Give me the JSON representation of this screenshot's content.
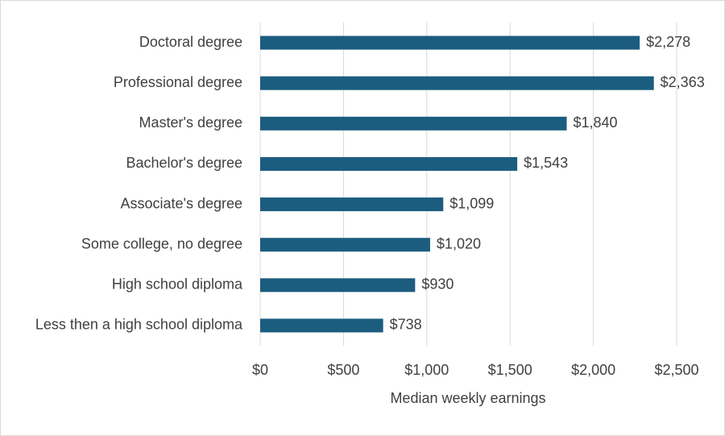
{
  "chart_data": {
    "type": "barh",
    "x_label": "Median weekly earnings",
    "categories": [
      "Doctoral degree",
      "Professional degree",
      "Master's degree",
      "Bachelor's degree",
      "Associate's degree",
      "Some college, no degree",
      "High school diploma",
      "Less then a high school diploma"
    ],
    "values": [
      2278,
      2363,
      1840,
      1543,
      1099,
      1020,
      930,
      738
    ],
    "value_labels": [
      "$2,278",
      "$2,363",
      "$1,840",
      "$1,543",
      "$1,099",
      "$1,020",
      "$930",
      "$738"
    ],
    "color": "#1c5d7f",
    "xlim": [
      0,
      2500
    ],
    "xticks": [
      {
        "value": 0,
        "label": "$0"
      },
      {
        "value": 500,
        "label": "$500"
      },
      {
        "value": 1000,
        "label": "$1,000"
      },
      {
        "value": 1500,
        "label": "$1,500"
      },
      {
        "value": 2000,
        "label": "$2,000"
      },
      {
        "value": 2500,
        "label": "$2,500"
      }
    ],
    "grid": true
  }
}
